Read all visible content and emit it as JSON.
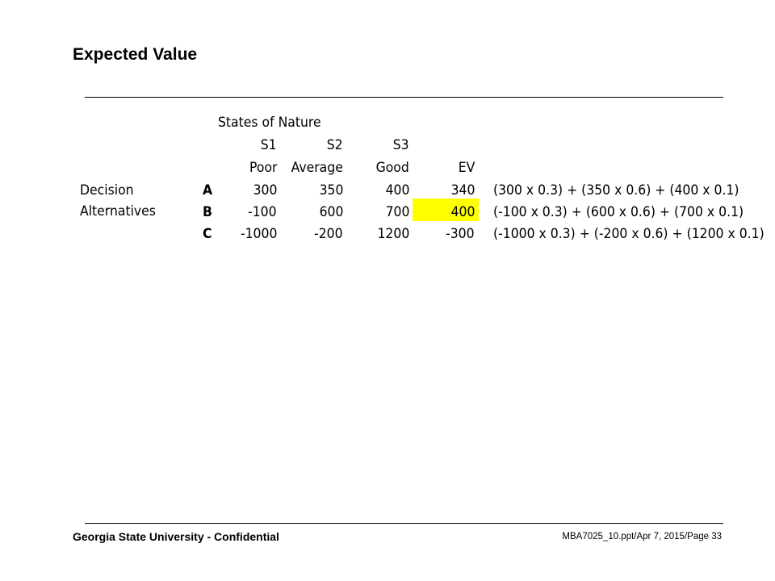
{
  "slide": {
    "title": "Expected Value",
    "footer_left": "Georgia State University - Confidential",
    "footer_right": "MBA7025_10.ppt/Apr 7, 2015/Page 33"
  },
  "table": {
    "super_header": "States of Nature",
    "state_codes": [
      "S1",
      "S2",
      "S3"
    ],
    "state_names": [
      "Poor",
      "Average",
      "Good"
    ],
    "ev_header": "EV",
    "row_label_1": "Decision",
    "row_label_2": "Alternatives",
    "rows": [
      {
        "alt": "A",
        "s1": "300",
        "s2": "350",
        "s3": "400",
        "ev": "340",
        "formula": "(300 x 0.3) + (350 x 0.6) + (400 x 0.1)"
      },
      {
        "alt": "B",
        "s1": "-100",
        "s2": "600",
        "s3": "700",
        "ev": "400",
        "formula": "(-100 x 0.3) + (600 x 0.6) + (700 x 0.1)"
      },
      {
        "alt": "C",
        "s1": "-1000",
        "s2": "-200",
        "s3": "1200",
        "ev": "-300",
        "formula": "(-1000 x 0.3) + (-200 x 0.6) + (1200 x 0.1)"
      }
    ],
    "highlight_color": "#ffff00"
  }
}
